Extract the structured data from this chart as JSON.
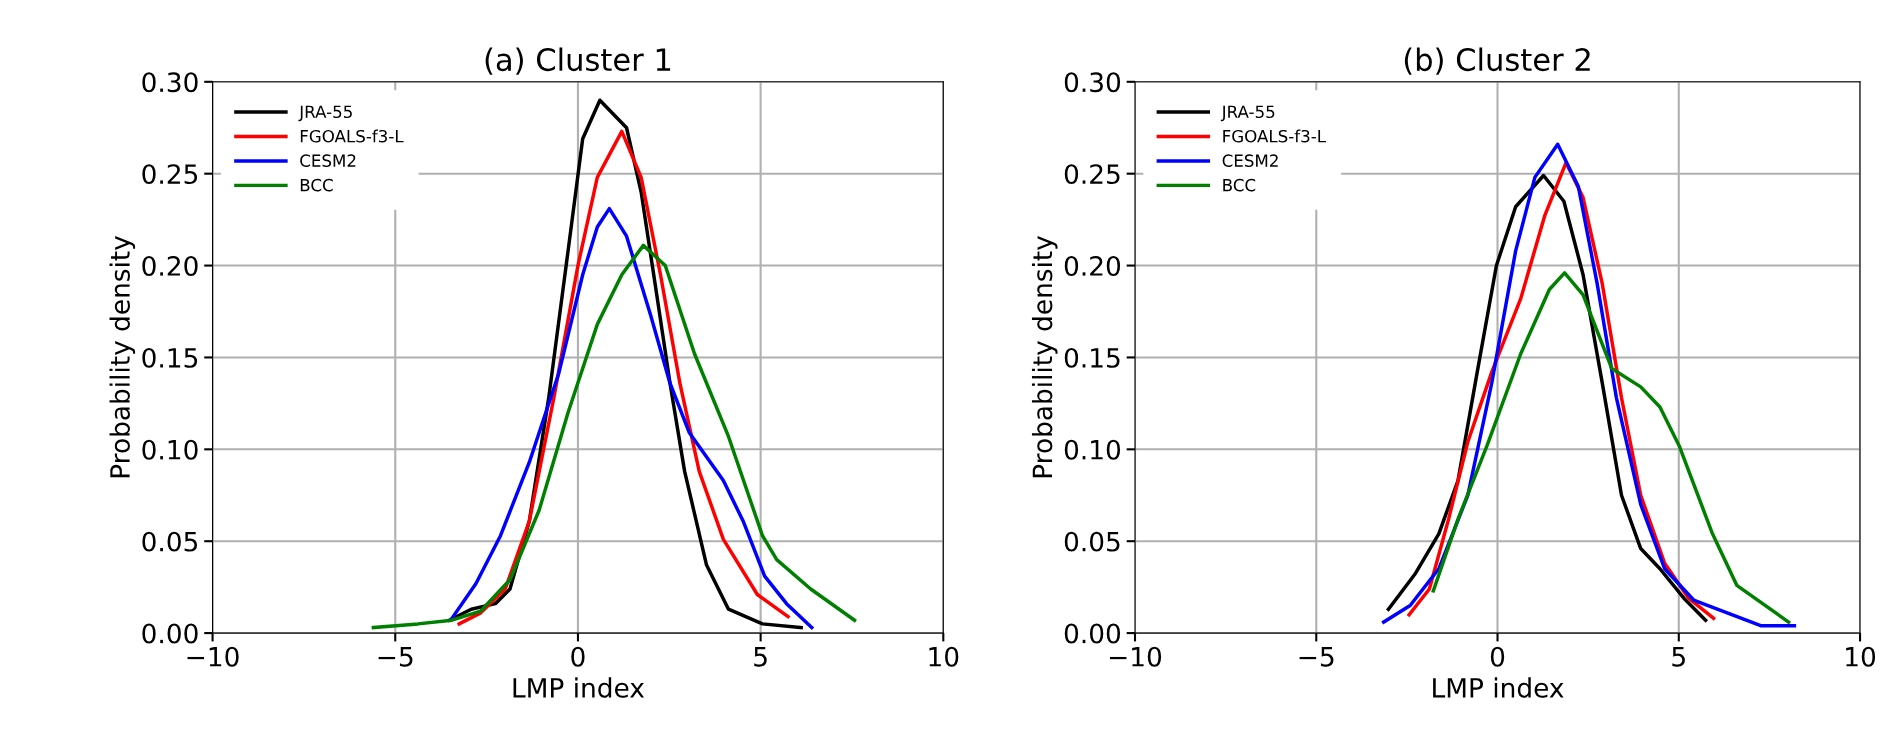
{
  "chart_data": [
    {
      "type": "line",
      "title": "(a) Cluster 1",
      "xlabel": "LMP index",
      "ylabel": "Probability density",
      "xlim": [
        -10,
        10
      ],
      "xticks": [
        -10,
        -5,
        0,
        5,
        10
      ],
      "ylim": [
        0,
        0.3
      ],
      "yticks": [
        {
          "value": 0,
          "label": "0.00"
        },
        {
          "value": 0.05,
          "label": "0.05"
        },
        {
          "value": 0.1,
          "label": "0.10"
        },
        {
          "value": 0.15,
          "label": "0.15"
        },
        {
          "value": 0.2,
          "label": "0.20"
        },
        {
          "value": 0.25,
          "label": "0.25"
        },
        {
          "value": 0.3,
          "label": "0.30"
        }
      ],
      "grid": true,
      "legend": "top left",
      "series": [
        {
          "name": "JRA-55",
          "color": "#000000",
          "x": [
            -3.52,
            -2.92,
            -2.26,
            -1.86,
            -1.33,
            -0.8,
            -0.27,
            0.13,
            0.6,
            1.33,
            1.73,
            2.12,
            2.52,
            2.92,
            3.52,
            4.12,
            5.05,
            6.11
          ],
          "values": [
            0.007,
            0.013,
            0.016,
            0.024,
            0.061,
            0.128,
            0.208,
            0.269,
            0.29,
            0.275,
            0.24,
            0.189,
            0.136,
            0.088,
            0.037,
            0.013,
            0.005,
            0.003
          ]
        },
        {
          "name": "FGOALS-f3-L",
          "color": "#ff0000",
          "x": [
            -3.25,
            -2.66,
            -1.99,
            -1.33,
            -0.66,
            0,
            0.53,
            1.2,
            1.73,
            2.26,
            2.79,
            3.32,
            3.98,
            4.91,
            5.75
          ],
          "values": [
            0.005,
            0.011,
            0.024,
            0.061,
            0.128,
            0.2,
            0.248,
            0.273,
            0.248,
            0.195,
            0.136,
            0.088,
            0.051,
            0.021,
            0.009
          ]
        },
        {
          "name": "CESM2",
          "color": "#0000ff",
          "x": [
            -3.45,
            -2.79,
            -2.12,
            -1.33,
            -0.53,
            0.13,
            0.53,
            0.86,
            1.33,
            1.99,
            2.52,
            3.05,
            3.98,
            4.52,
            5.11,
            5.71,
            6.4
          ],
          "values": [
            0.008,
            0.027,
            0.053,
            0.093,
            0.141,
            0.195,
            0.221,
            0.231,
            0.216,
            0.173,
            0.136,
            0.109,
            0.083,
            0.061,
            0.031,
            0.016,
            0.003
          ]
        },
        {
          "name": "BCC",
          "color": "#008000",
          "x": [
            -5.6,
            -4.38,
            -3.45,
            -2.66,
            -1.86,
            -1.06,
            -0.27,
            0.53,
            1.2,
            1.79,
            2.39,
            3.19,
            4.12,
            5.05,
            5.44,
            6.37,
            7.57
          ],
          "values": [
            0.003,
            0.005,
            0.007,
            0.012,
            0.029,
            0.067,
            0.12,
            0.168,
            0.195,
            0.211,
            0.2,
            0.152,
            0.107,
            0.053,
            0.04,
            0.024,
            0.007
          ]
        }
      ]
    },
    {
      "type": "line",
      "title": "(b) Cluster 2",
      "xlabel": "LMP index",
      "ylabel": "Probability density",
      "xlim": [
        -10,
        10
      ],
      "xticks": [
        -10,
        -5,
        0,
        5,
        10
      ],
      "ylim": [
        0,
        0.3
      ],
      "yticks": [
        {
          "value": 0,
          "label": "0.00"
        },
        {
          "value": 0.05,
          "label": "0.05"
        },
        {
          "value": 0.1,
          "label": "0.10"
        },
        {
          "value": 0.15,
          "label": "0.15"
        },
        {
          "value": 0.2,
          "label": "0.20"
        },
        {
          "value": 0.25,
          "label": "0.25"
        },
        {
          "value": 0.3,
          "label": "0.30"
        }
      ],
      "grid": true,
      "legend": "top left",
      "series": [
        {
          "name": "JRA-55",
          "color": "#000000",
          "x": [
            -3.01,
            -2.28,
            -1.62,
            -1.09,
            -0.56,
            -0.03,
            0.5,
            1.27,
            1.83,
            2.36,
            2.89,
            3.42,
            3.95,
            4.48,
            5.14,
            5.74
          ],
          "values": [
            0.013,
            0.032,
            0.054,
            0.083,
            0.142,
            0.2,
            0.232,
            0.249,
            0.235,
            0.195,
            0.136,
            0.075,
            0.046,
            0.035,
            0.019,
            0.007
          ]
        },
        {
          "name": "FGOALS-f3-L",
          "color": "#ff0000",
          "x": [
            -2.44,
            -1.88,
            -1.35,
            -0.82,
            -0.16,
            0.64,
            1.3,
            1.89,
            2.36,
            2.89,
            3.42,
            3.95,
            4.61,
            5.27,
            5.96
          ],
          "values": [
            0.01,
            0.024,
            0.062,
            0.104,
            0.142,
            0.182,
            0.227,
            0.256,
            0.237,
            0.19,
            0.128,
            0.075,
            0.038,
            0.019,
            0.008
          ]
        },
        {
          "name": "CESM2",
          "color": "#0000ff",
          "x": [
            -3.14,
            -2.41,
            -1.62,
            -0.82,
            -0.16,
            0.5,
            1.03,
            1.66,
            2.23,
            2.75,
            3.28,
            3.95,
            4.61,
            5.41,
            7.26,
            8.19
          ],
          "values": [
            0.006,
            0.015,
            0.035,
            0.075,
            0.136,
            0.208,
            0.248,
            0.266,
            0.243,
            0.19,
            0.128,
            0.07,
            0.035,
            0.018,
            0.004,
            0.004
          ]
        },
        {
          "name": "BCC",
          "color": "#008000",
          "x": [
            -1.77,
            -1.09,
            -0.29,
            0.64,
            1.43,
            1.85,
            2.36,
            3.15,
            3.95,
            4.48,
            5.01,
            5.93,
            6.6,
            8.03
          ],
          "values": [
            0.023,
            0.062,
            0.102,
            0.152,
            0.187,
            0.196,
            0.184,
            0.144,
            0.134,
            0.123,
            0.102,
            0.054,
            0.026,
            0.006
          ]
        }
      ]
    }
  ]
}
